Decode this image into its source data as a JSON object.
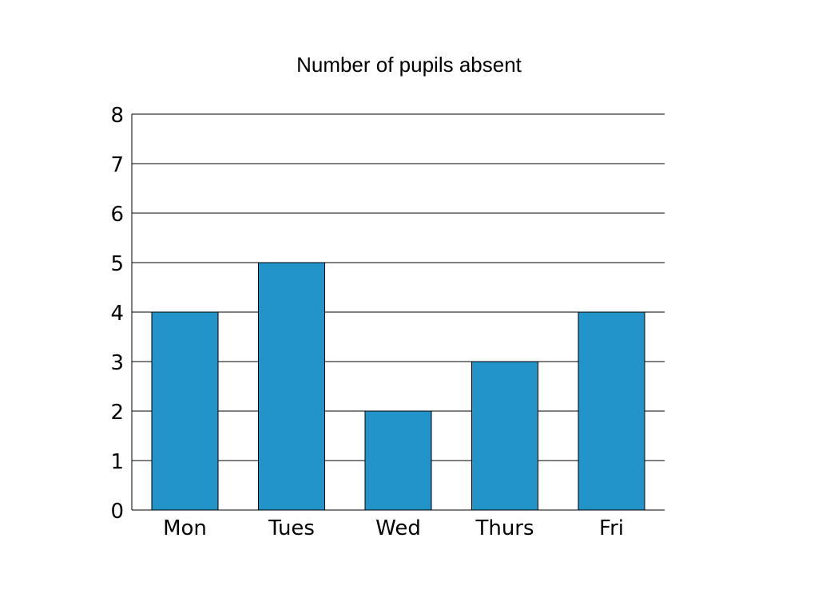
{
  "chart_data": {
    "type": "bar",
    "title": "Number of pupils absent",
    "xlabel": "",
    "ylabel": "",
    "categories": [
      "Mon",
      "Tues",
      "Wed",
      "Thurs",
      "Fri"
    ],
    "values": [
      4,
      5,
      2,
      3,
      4
    ],
    "ylim": [
      0,
      8
    ],
    "yticks": [
      0,
      1,
      2,
      3,
      4,
      5,
      6,
      7,
      8
    ],
    "grid": true,
    "legend": "none",
    "bar_color": "#2394C9"
  }
}
